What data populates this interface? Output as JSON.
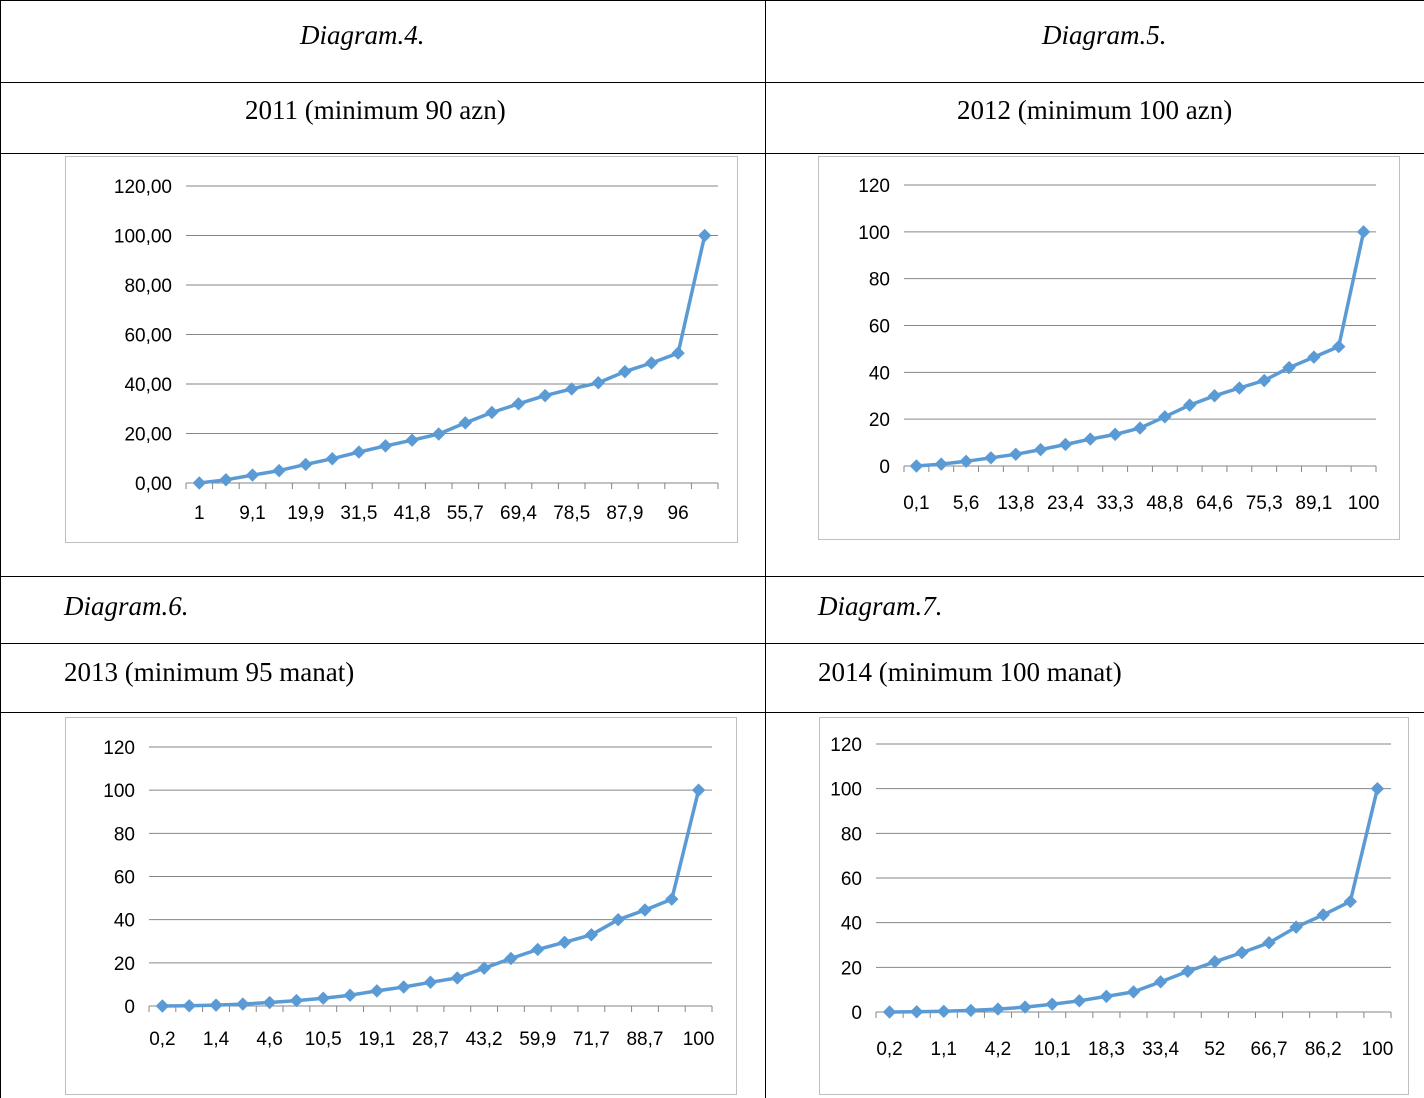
{
  "cells": {
    "d4_caption": "Diagram.4.",
    "d5_caption": "Diagram.5.",
    "d4_title": "2011 (minimum 90 azn)",
    "d5_title": "2012 (minimum 100 azn)",
    "d6_caption": "Diagram.6.",
    "d7_caption": "Diagram.7.",
    "d6_title": "2013 (minimum 95 manat)",
    "d7_title": "2014 (minimum 100 manat)"
  },
  "colors": {
    "series": "#5b9bd5",
    "grid": "#868686",
    "border": "#bfbfbf"
  },
  "chart_data": [
    {
      "type": "line",
      "ylim": [
        0,
        120
      ],
      "yticks": [
        "0,00",
        "20,00",
        "40,00",
        "60,00",
        "80,00",
        "100,00",
        "120,00"
      ],
      "xtick_labels": [
        "1",
        "9,1",
        "19,9",
        "31,5",
        "41,8",
        "55,7",
        "69,4",
        "78,5",
        "87,9",
        "96"
      ],
      "values": [
        0,
        1.3,
        3.2,
        5,
        7.5,
        9.8,
        12.5,
        15,
        17.3,
        19.8,
        24.3,
        28.5,
        32,
        35.3,
        38,
        40.5,
        45,
        48.5,
        52.5,
        100
      ],
      "marker": "diamond"
    },
    {
      "type": "line",
      "ylim": [
        0,
        120
      ],
      "yticks": [
        "0",
        "20",
        "40",
        "60",
        "80",
        "100",
        "120"
      ],
      "xtick_labels": [
        "0,1",
        "5,6",
        "13,8",
        "23,4",
        "33,3",
        "48,8",
        "64,6",
        "75,3",
        "89,1",
        "100"
      ],
      "values": [
        0,
        0.8,
        2,
        3.5,
        5,
        7,
        9.2,
        11.5,
        13.5,
        16.2,
        21,
        26,
        30,
        33.3,
        36.5,
        42,
        46.5,
        51,
        100
      ],
      "marker": "diamond"
    },
    {
      "type": "line",
      "ylim": [
        0,
        120
      ],
      "yticks": [
        "0",
        "20",
        "40",
        "60",
        "80",
        "100",
        "120"
      ],
      "xtick_labels": [
        "0,2",
        "1,4",
        "4,6",
        "10,5",
        "19,1",
        "28,7",
        "43,2",
        "59,9",
        "71,7",
        "88,7",
        "100"
      ],
      "values": [
        0,
        0.1,
        0.4,
        0.9,
        1.6,
        2.5,
        3.6,
        5,
        7,
        8.8,
        11,
        13,
        17.5,
        22,
        26.2,
        29.5,
        33,
        40,
        44.5,
        49.5,
        100
      ],
      "marker": "diamond"
    },
    {
      "type": "line",
      "ylim": [
        0,
        120
      ],
      "yticks": [
        "0",
        "20",
        "40",
        "60",
        "80",
        "100",
        "120"
      ],
      "xtick_labels": [
        "0,2",
        "1,1",
        "4,2",
        "10,1",
        "18,3",
        "33,4",
        "52",
        "66,7",
        "86,2",
        "100"
      ],
      "values": [
        0,
        0.1,
        0.3,
        0.7,
        1.3,
        2.2,
        3.5,
        5,
        7,
        9,
        13.5,
        18.2,
        22.5,
        26.6,
        31,
        38,
        43.5,
        49.5,
        100
      ],
      "marker": "diamond"
    }
  ]
}
